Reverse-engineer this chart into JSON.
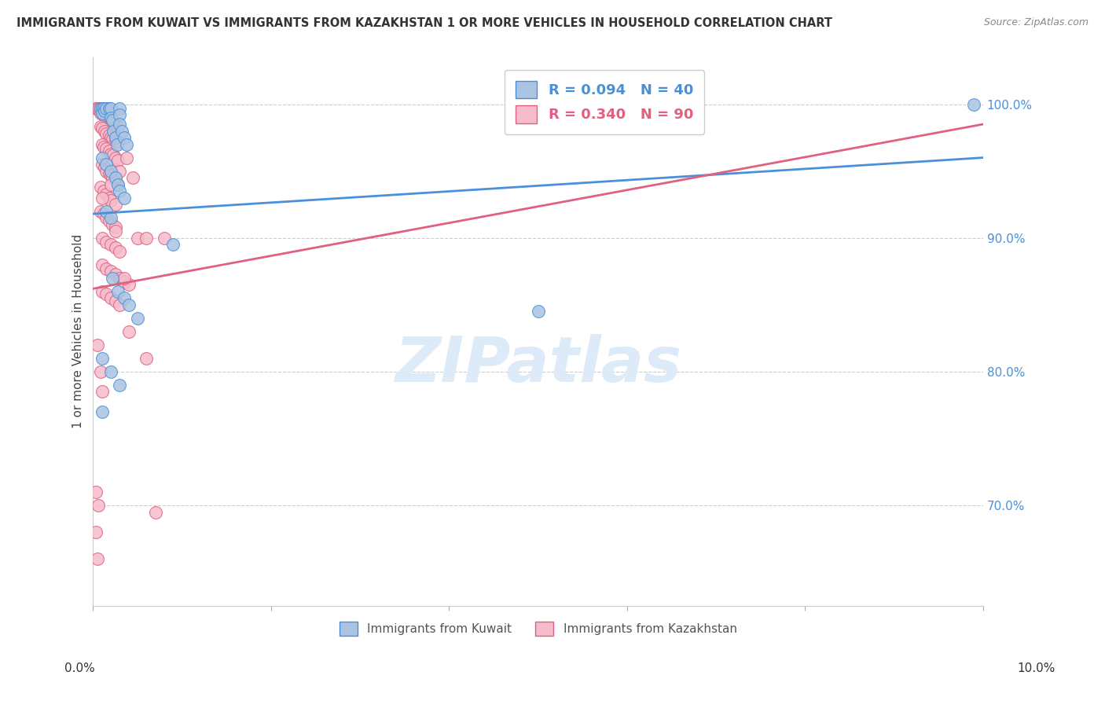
{
  "title": "IMMIGRANTS FROM KUWAIT VS IMMIGRANTS FROM KAZAKHSTAN 1 OR MORE VEHICLES IN HOUSEHOLD CORRELATION CHART",
  "source": "Source: ZipAtlas.com",
  "ylabel": "1 or more Vehicles in Household",
  "legend_blue_R": "R = 0.094",
  "legend_blue_N": "N = 40",
  "legend_pink_R": "R = 0.340",
  "legend_pink_N": "N = 90",
  "legend_label_blue": "Immigrants from Kuwait",
  "legend_label_pink": "Immigrants from Kazakhstan",
  "blue_color": "#aac4e2",
  "pink_color": "#f5bccb",
  "blue_line_color": "#4a90d9",
  "pink_line_color": "#e06080",
  "x_range": [
    0.0,
    0.1
  ],
  "y_range": [
    0.625,
    1.035
  ],
  "blue_line": [
    [
      0.0,
      0.918
    ],
    [
      0.1,
      0.96
    ]
  ],
  "pink_line": [
    [
      0.0,
      0.862
    ],
    [
      0.1,
      0.985
    ]
  ],
  "blue_scatter": [
    [
      0.0008,
      0.997
    ],
    [
      0.001,
      0.997
    ],
    [
      0.001,
      0.993
    ],
    [
      0.0012,
      0.997
    ],
    [
      0.0013,
      0.995
    ],
    [
      0.0015,
      0.997
    ],
    [
      0.0018,
      0.997
    ],
    [
      0.002,
      0.997
    ],
    [
      0.002,
      0.99
    ],
    [
      0.0022,
      0.988
    ],
    [
      0.0023,
      0.98
    ],
    [
      0.0025,
      0.975
    ],
    [
      0.0027,
      0.97
    ],
    [
      0.003,
      0.997
    ],
    [
      0.003,
      0.992
    ],
    [
      0.003,
      0.985
    ],
    [
      0.0032,
      0.98
    ],
    [
      0.0035,
      0.975
    ],
    [
      0.0038,
      0.97
    ],
    [
      0.001,
      0.96
    ],
    [
      0.0015,
      0.955
    ],
    [
      0.002,
      0.95
    ],
    [
      0.0025,
      0.945
    ],
    [
      0.0028,
      0.94
    ],
    [
      0.003,
      0.935
    ],
    [
      0.0035,
      0.93
    ],
    [
      0.0015,
      0.92
    ],
    [
      0.002,
      0.915
    ],
    [
      0.0022,
      0.87
    ],
    [
      0.0028,
      0.86
    ],
    [
      0.0035,
      0.855
    ],
    [
      0.004,
      0.85
    ],
    [
      0.001,
      0.81
    ],
    [
      0.002,
      0.8
    ],
    [
      0.003,
      0.79
    ],
    [
      0.001,
      0.77
    ],
    [
      0.005,
      0.84
    ],
    [
      0.009,
      0.895
    ],
    [
      0.05,
      0.845
    ],
    [
      0.099,
      1.0
    ]
  ],
  "pink_scatter": [
    [
      0.0003,
      0.997
    ],
    [
      0.0005,
      0.997
    ],
    [
      0.0007,
      0.997
    ],
    [
      0.0008,
      0.997
    ],
    [
      0.001,
      0.997
    ],
    [
      0.0012,
      0.997
    ],
    [
      0.0013,
      0.997
    ],
    [
      0.0015,
      0.997
    ],
    [
      0.0008,
      0.993
    ],
    [
      0.001,
      0.993
    ],
    [
      0.0012,
      0.992
    ],
    [
      0.0015,
      0.99
    ],
    [
      0.0018,
      0.988
    ],
    [
      0.002,
      0.988
    ],
    [
      0.0022,
      0.987
    ],
    [
      0.0025,
      0.985
    ],
    [
      0.0008,
      0.983
    ],
    [
      0.001,
      0.982
    ],
    [
      0.0013,
      0.98
    ],
    [
      0.0015,
      0.978
    ],
    [
      0.0018,
      0.977
    ],
    [
      0.002,
      0.975
    ],
    [
      0.0022,
      0.974
    ],
    [
      0.0025,
      0.973
    ],
    [
      0.0028,
      0.972
    ],
    [
      0.001,
      0.97
    ],
    [
      0.0012,
      0.968
    ],
    [
      0.0015,
      0.967
    ],
    [
      0.0018,
      0.965
    ],
    [
      0.002,
      0.963
    ],
    [
      0.0023,
      0.962
    ],
    [
      0.0025,
      0.96
    ],
    [
      0.0028,
      0.958
    ],
    [
      0.001,
      0.955
    ],
    [
      0.0013,
      0.953
    ],
    [
      0.0015,
      0.95
    ],
    [
      0.0018,
      0.948
    ],
    [
      0.002,
      0.947
    ],
    [
      0.0022,
      0.945
    ],
    [
      0.0025,
      0.943
    ],
    [
      0.0028,
      0.94
    ],
    [
      0.0008,
      0.938
    ],
    [
      0.0012,
      0.935
    ],
    [
      0.0015,
      0.933
    ],
    [
      0.0018,
      0.93
    ],
    [
      0.002,
      0.928
    ],
    [
      0.0025,
      0.925
    ],
    [
      0.0008,
      0.92
    ],
    [
      0.0012,
      0.918
    ],
    [
      0.0015,
      0.915
    ],
    [
      0.0018,
      0.913
    ],
    [
      0.0022,
      0.91
    ],
    [
      0.0025,
      0.908
    ],
    [
      0.001,
      0.9
    ],
    [
      0.0015,
      0.897
    ],
    [
      0.002,
      0.895
    ],
    [
      0.0025,
      0.893
    ],
    [
      0.003,
      0.89
    ],
    [
      0.001,
      0.88
    ],
    [
      0.0015,
      0.877
    ],
    [
      0.002,
      0.875
    ],
    [
      0.0025,
      0.873
    ],
    [
      0.003,
      0.87
    ],
    [
      0.0035,
      0.867
    ],
    [
      0.004,
      0.865
    ],
    [
      0.001,
      0.86
    ],
    [
      0.0015,
      0.858
    ],
    [
      0.002,
      0.855
    ],
    [
      0.0025,
      0.853
    ],
    [
      0.003,
      0.85
    ],
    [
      0.001,
      0.93
    ],
    [
      0.002,
      0.94
    ],
    [
      0.003,
      0.95
    ],
    [
      0.0038,
      0.96
    ],
    [
      0.0045,
      0.945
    ],
    [
      0.0025,
      0.905
    ],
    [
      0.0035,
      0.87
    ],
    [
      0.004,
      0.83
    ],
    [
      0.005,
      0.9
    ],
    [
      0.006,
      0.9
    ],
    [
      0.006,
      0.81
    ],
    [
      0.0005,
      0.82
    ],
    [
      0.0008,
      0.8
    ],
    [
      0.001,
      0.785
    ],
    [
      0.0003,
      0.71
    ],
    [
      0.0006,
      0.7
    ],
    [
      0.0003,
      0.68
    ],
    [
      0.0005,
      0.66
    ],
    [
      0.007,
      0.695
    ],
    [
      0.008,
      0.9
    ]
  ]
}
